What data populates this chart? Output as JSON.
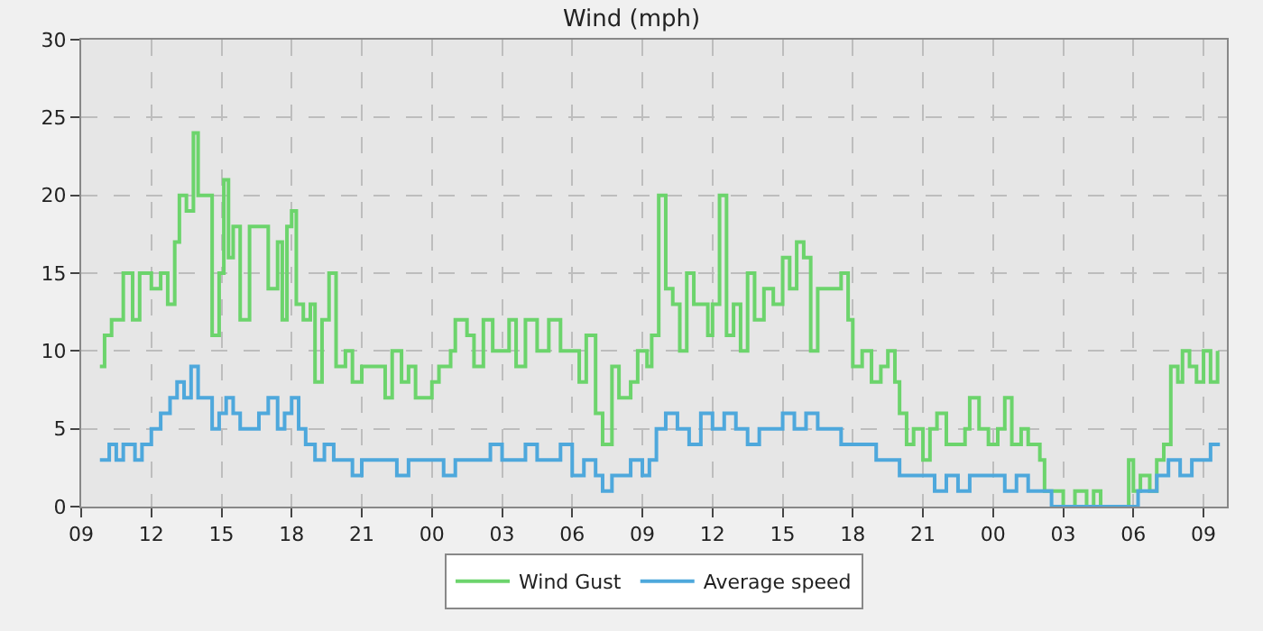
{
  "chart_data": {
    "type": "step",
    "title": "Wind (mph)",
    "xlim": [
      9,
      58
    ],
    "xticks": [
      {
        "value": 9,
        "label": "09"
      },
      {
        "value": 12,
        "label": "12"
      },
      {
        "value": 15,
        "label": "15"
      },
      {
        "value": 18,
        "label": "18"
      },
      {
        "value": 21,
        "label": "21"
      },
      {
        "value": 24,
        "label": "00"
      },
      {
        "value": 27,
        "label": "03"
      },
      {
        "value": 30,
        "label": "06"
      },
      {
        "value": 33,
        "label": "09"
      },
      {
        "value": 36,
        "label": "12"
      },
      {
        "value": 39,
        "label": "15"
      },
      {
        "value": 42,
        "label": "18"
      },
      {
        "value": 45,
        "label": "21"
      },
      {
        "value": 48,
        "label": "00"
      },
      {
        "value": 51,
        "label": "03"
      },
      {
        "value": 54,
        "label": "06"
      },
      {
        "value": 57,
        "label": "09"
      }
    ],
    "ylim": [
      0,
      30
    ],
    "yticks": [
      0,
      5,
      10,
      15,
      20,
      25,
      30
    ],
    "grid": true,
    "legend": "bottom",
    "marker": "none",
    "line_style": "solid",
    "series": [
      {
        "name": "Wind Gust",
        "color": "#6cd46c",
        "x": [
          9.8,
          10.0,
          10.3,
          10.8,
          11.2,
          11.5,
          12,
          12.4,
          12.7,
          13,
          13.2,
          13.5,
          13.8,
          14,
          14.3,
          14.6,
          14.9,
          15.1,
          15.3,
          15.5,
          15.8,
          16.2,
          16.6,
          17,
          17.4,
          17.6,
          17.8,
          18,
          18.2,
          18.5,
          18.8,
          19,
          19.3,
          19.6,
          19.9,
          20.3,
          20.6,
          21,
          21.5,
          22,
          22.3,
          22.7,
          23,
          23.3,
          23.6,
          24,
          24.3,
          24.8,
          25,
          25.5,
          25.8,
          26.2,
          26.6,
          27,
          27.3,
          27.6,
          28,
          28.5,
          29,
          29.5,
          30,
          30.3,
          30.6,
          31,
          31.3,
          31.7,
          32,
          32.5,
          32.8,
          33.2,
          33.4,
          33.7,
          34,
          34.3,
          34.6,
          34.9,
          35.2,
          35.5,
          35.8,
          36,
          36.3,
          36.6,
          36.9,
          37.2,
          37.5,
          37.8,
          38.2,
          38.6,
          39,
          39.3,
          39.6,
          39.9,
          40.2,
          40.5,
          41,
          41.5,
          41.8,
          42,
          42.4,
          42.8,
          43.2,
          43.5,
          43.8,
          44,
          44.3,
          44.6,
          45,
          45.3,
          45.6,
          46,
          46.5,
          46.8,
          47,
          47.4,
          47.8,
          48.2,
          48.5,
          48.8,
          49.2,
          49.5,
          50,
          50.2,
          51,
          51.5,
          52,
          52.3,
          52.6,
          53.5,
          53.8,
          54,
          54.3,
          54.7,
          55,
          55.3,
          55.6,
          55.9,
          56.1,
          56.4,
          56.7,
          57,
          57.3,
          57.6
        ],
        "values": [
          9,
          11,
          12,
          15,
          12,
          15,
          14,
          15,
          13,
          17,
          20,
          19,
          24,
          20,
          20,
          11,
          15,
          21,
          16,
          18,
          12,
          18,
          18,
          14,
          17,
          12,
          18,
          19,
          13,
          12,
          13,
          8,
          12,
          15,
          9,
          10,
          8,
          9,
          9,
          7,
          10,
          8,
          9,
          7,
          7,
          8,
          9,
          10,
          12,
          11,
          9,
          12,
          10,
          10,
          12,
          9,
          12,
          10,
          12,
          10,
          10,
          8,
          11,
          6,
          4,
          9,
          7,
          8,
          10,
          9,
          11,
          20,
          14,
          13,
          10,
          15,
          13,
          13,
          11,
          13,
          20,
          11,
          13,
          10,
          15,
          12,
          14,
          13,
          16,
          14,
          17,
          16,
          10,
          14,
          14,
          15,
          12,
          9,
          10,
          8,
          9,
          10,
          8,
          6,
          4,
          5,
          3,
          5,
          6,
          4,
          4,
          5,
          7,
          5,
          4,
          5,
          7,
          4,
          5,
          4,
          3,
          1,
          0,
          1,
          0,
          1,
          0,
          0,
          3,
          1,
          2,
          1,
          3,
          4,
          9,
          8,
          10,
          9,
          8,
          10,
          8,
          10
        ]
      },
      {
        "name": "Average speed",
        "color": "#4ea8dc",
        "x": [
          9.8,
          10.2,
          10.5,
          10.8,
          11.3,
          11.6,
          12,
          12.4,
          12.8,
          13.1,
          13.4,
          13.7,
          14,
          14.3,
          14.6,
          14.9,
          15.2,
          15.5,
          15.8,
          16.2,
          16.6,
          17,
          17.4,
          17.7,
          18,
          18.3,
          18.6,
          19,
          19.4,
          19.8,
          20.2,
          20.6,
          21,
          21.5,
          22,
          22.5,
          23,
          23.5,
          24,
          24.5,
          25,
          25.5,
          26,
          26.5,
          27,
          27.5,
          28,
          28.5,
          29,
          29.5,
          30,
          30.5,
          31,
          31.3,
          31.7,
          32,
          32.5,
          33,
          33.3,
          33.6,
          34,
          34.5,
          35,
          35.5,
          36,
          36.5,
          37,
          37.5,
          38,
          38.5,
          39,
          39.5,
          40,
          40.5,
          41,
          41.5,
          42,
          42.5,
          43,
          43.5,
          44,
          44.5,
          45,
          45.5,
          46,
          46.5,
          47,
          47.5,
          48,
          48.5,
          49,
          49.5,
          50,
          50.5,
          51,
          52,
          53,
          54,
          54.2,
          54.5,
          55,
          55.5,
          56,
          56.5,
          57,
          57.3,
          57.7
        ],
        "values": [
          3,
          4,
          3,
          4,
          3,
          4,
          5,
          6,
          7,
          8,
          7,
          9,
          7,
          7,
          5,
          6,
          7,
          6,
          5,
          5,
          6,
          7,
          5,
          6,
          7,
          5,
          4,
          3,
          4,
          3,
          3,
          2,
          3,
          3,
          3,
          2,
          3,
          3,
          3,
          2,
          3,
          3,
          3,
          4,
          3,
          3,
          4,
          3,
          3,
          4,
          2,
          3,
          2,
          1,
          2,
          2,
          3,
          2,
          3,
          5,
          6,
          5,
          4,
          6,
          5,
          6,
          5,
          4,
          5,
          5,
          6,
          5,
          6,
          5,
          5,
          4,
          4,
          4,
          3,
          3,
          2,
          2,
          2,
          1,
          2,
          1,
          2,
          2,
          2,
          1,
          2,
          1,
          1,
          0,
          0,
          0,
          0,
          0,
          1,
          1,
          2,
          3,
          2,
          3,
          3,
          4,
          4
        ]
      }
    ]
  }
}
